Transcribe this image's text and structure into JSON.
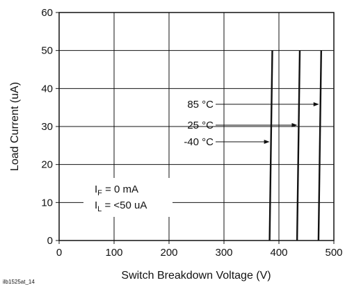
{
  "chart_data": {
    "type": "line",
    "xlabel": "Switch Breakdown Voltage (V)",
    "ylabel": "Load Current (uA)",
    "xlim": [
      0,
      500
    ],
    "ylim": [
      0,
      60
    ],
    "x_ticks": [
      "0",
      "100",
      "200",
      "300",
      "400",
      "500"
    ],
    "y_ticks": [
      "0",
      "10",
      "20",
      "30",
      "40",
      "50",
      "60"
    ],
    "grid": true,
    "series": [
      {
        "name": "-40 °C",
        "x": [
          383,
          388
        ],
        "y": [
          0,
          50
        ]
      },
      {
        "name": "25 °C",
        "x": [
          433,
          438
        ],
        "y": [
          0,
          50
        ]
      },
      {
        "name": "85 °C",
        "x": [
          472,
          477
        ],
        "y": [
          0,
          50
        ]
      }
    ],
    "conditions": {
      "if_main": "I",
      "if_sub": "F",
      "if_value": " = 0 mA",
      "il_main": "I",
      "il_sub": "L",
      "il_value": " = <50 uA"
    },
    "footnote": "ilb1525at_14"
  }
}
